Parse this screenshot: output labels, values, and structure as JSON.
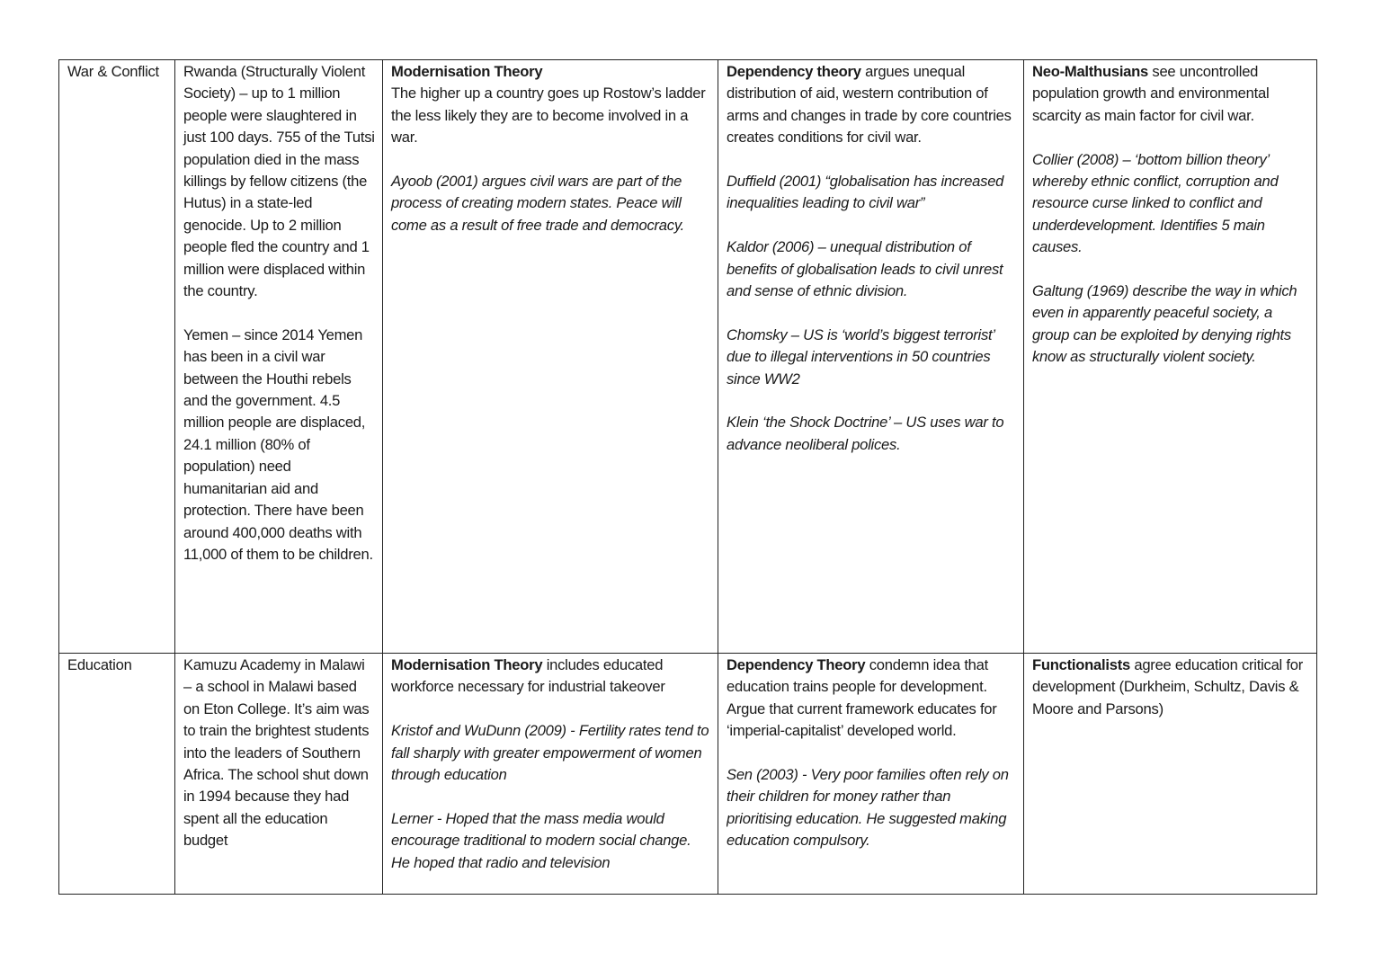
{
  "rows": [
    {
      "topic": "War & Conflict",
      "cells": [
        [
          {
            "lead": "",
            "text": "Rwanda (Structurally Violent Society) – up to 1 million people were slaughtered in just 100 days. 755 of the Tutsi population died in the mass killings by fellow citizens (the Hutus) in a state-led genocide. Up to 2 million people fled the country and 1 million were displaced within the country.",
            "italic": false
          },
          {
            "lead": "",
            "text": "Yemen – since 2014 Yemen has been in a civil war between the Houthi rebels and the government. 4.5 million people are displaced, 24.1 million (80% of population) need humanitarian aid and protection. There have been around 400,000 deaths with 11,000 of them to be children.",
            "italic": false
          }
        ],
        [
          {
            "lead": "Modernisation Theory",
            "text": "The higher up a country goes up Rostow’s ladder the less likely they are to become involved in a war.",
            "italic": false,
            "lead_block": true
          },
          {
            "lead": "",
            "text": "Ayoob (2001) argues civil wars are part of the process of creating modern states. Peace will come as a result of free trade and democracy.",
            "italic": true
          }
        ],
        [
          {
            "lead": "Dependency theory",
            "text": " argues unequal distribution of aid, western contribution of arms and changes in trade by core countries creates conditions for civil war.",
            "italic": false
          },
          {
            "lead": "",
            "text": "Duffield (2001) “globalisation has increased inequalities leading to civil war”",
            "italic": true
          },
          {
            "lead": "",
            "text": "Kaldor (2006) – unequal distribution of benefits of globalisation leads to civil unrest and sense of ethnic division.",
            "italic": true
          },
          {
            "lead": "",
            "text": "Chomsky – US is ‘world’s biggest terrorist’ due to illegal interventions in 50 countries since WW2",
            "italic": true
          },
          {
            "lead": "",
            "text": "Klein ‘the Shock Doctrine’ – US uses war to advance neoliberal polices.",
            "italic": true
          }
        ],
        [
          {
            "lead": "Neo-Malthusians",
            "text": " see uncontrolled population growth and environmental scarcity as main factor for civil war.",
            "italic": false
          },
          {
            "lead": "",
            "text": "Collier (2008) – ‘bottom billion theory’ whereby ethnic conflict, corruption and resource curse linked to conflict and underdevelopment. Identifies 5 main causes.",
            "italic": true
          },
          {
            "lead": "",
            "text": "Galtung (1969) describe the way in which even in apparently peaceful society, a group can be exploited by denying rights know as structurally violent society.",
            "italic": true
          }
        ]
      ]
    },
    {
      "topic": "Education",
      "cells": [
        [
          {
            "lead": "",
            "text": "Kamuzu Academy in Malawi – a school in Malawi based on Eton College. It’s aim was to train the brightest students into the leaders of Southern Africa. The school shut down in 1994 because they had spent all the education budget",
            "italic": false
          }
        ],
        [
          {
            "lead": "Modernisation Theory",
            "text": " includes educated workforce necessary for industrial takeover",
            "italic": false
          },
          {
            "lead": "",
            "text": "Kristof and WuDunn (2009) - Fertility rates tend to fall sharply with greater empowerment of women through education",
            "italic": true
          },
          {
            "lead": "",
            "text": "Lerner - Hoped that the mass media would encourage traditional to modern social change. He hoped that radio and television",
            "italic": true
          }
        ],
        [
          {
            "lead": "Dependency Theory",
            "text": " condemn idea that education trains people for development. Argue that current framework educates for ‘imperial-capitalist’ developed world.",
            "italic": false
          },
          {
            "lead": "",
            "text": "Sen (2003) - Very poor families often rely on their children for money rather than prioritising education. He suggested making education compulsory.",
            "italic": true
          }
        ],
        [
          {
            "lead": "Functionalists",
            "text": " agree education critical for development (Durkheim, Schultz, Davis & Moore and Parsons)",
            "italic": false
          }
        ]
      ]
    }
  ]
}
